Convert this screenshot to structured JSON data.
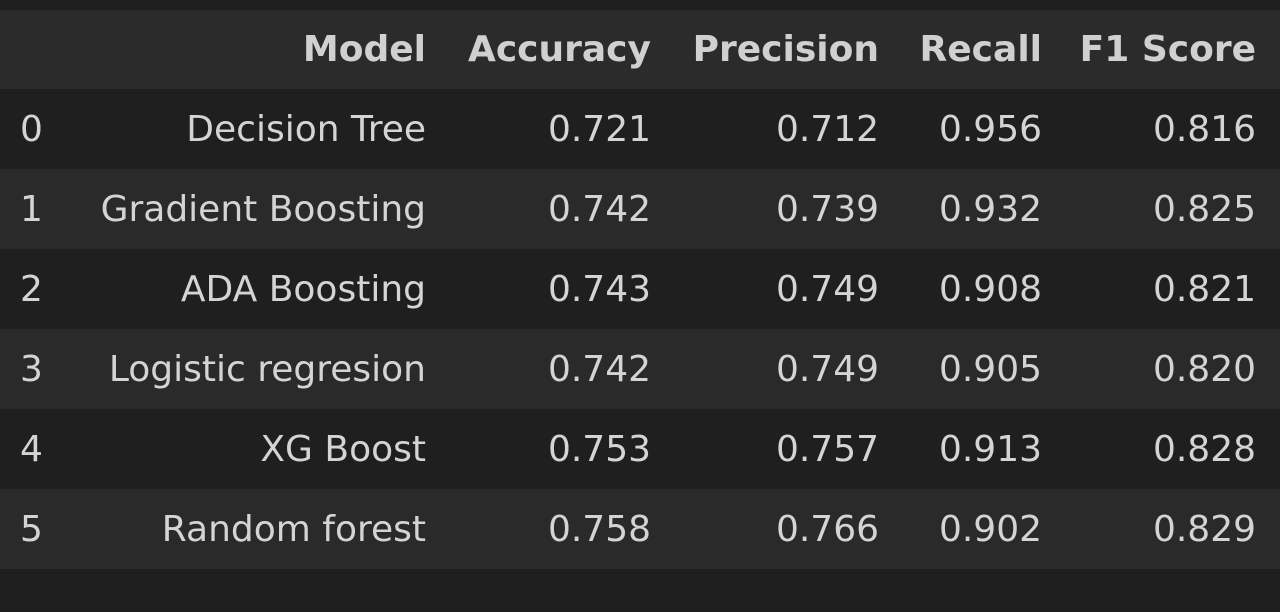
{
  "table": {
    "columns": [
      "",
      "Model",
      "Accuracy",
      "Precision",
      "Recall",
      "F1 Score"
    ],
    "rows": [
      {
        "index": "0",
        "model": "Decision Tree",
        "accuracy": "0.721",
        "precision": "0.712",
        "recall": "0.956",
        "f1": "0.816"
      },
      {
        "index": "1",
        "model": "Gradient Boosting",
        "accuracy": "0.742",
        "precision": "0.739",
        "recall": "0.932",
        "f1": "0.825"
      },
      {
        "index": "2",
        "model": "ADA Boosting",
        "accuracy": "0.743",
        "precision": "0.749",
        "recall": "0.908",
        "f1": "0.821"
      },
      {
        "index": "3",
        "model": "Logistic regresion",
        "accuracy": "0.742",
        "precision": "0.749",
        "recall": "0.905",
        "f1": "0.820"
      },
      {
        "index": "4",
        "model": "XG Boost",
        "accuracy": "0.753",
        "precision": "0.757",
        "recall": "0.913",
        "f1": "0.828"
      },
      {
        "index": "5",
        "model": "Random forest",
        "accuracy": "0.758",
        "precision": "0.766",
        "recall": "0.902",
        "f1": "0.829"
      }
    ]
  },
  "colors": {
    "background": "#1e1e1e",
    "header_row": "#2b2b2b",
    "row_odd": "#1f1f1f",
    "row_even": "#2a2a2a",
    "text": "#d4d4d4"
  }
}
